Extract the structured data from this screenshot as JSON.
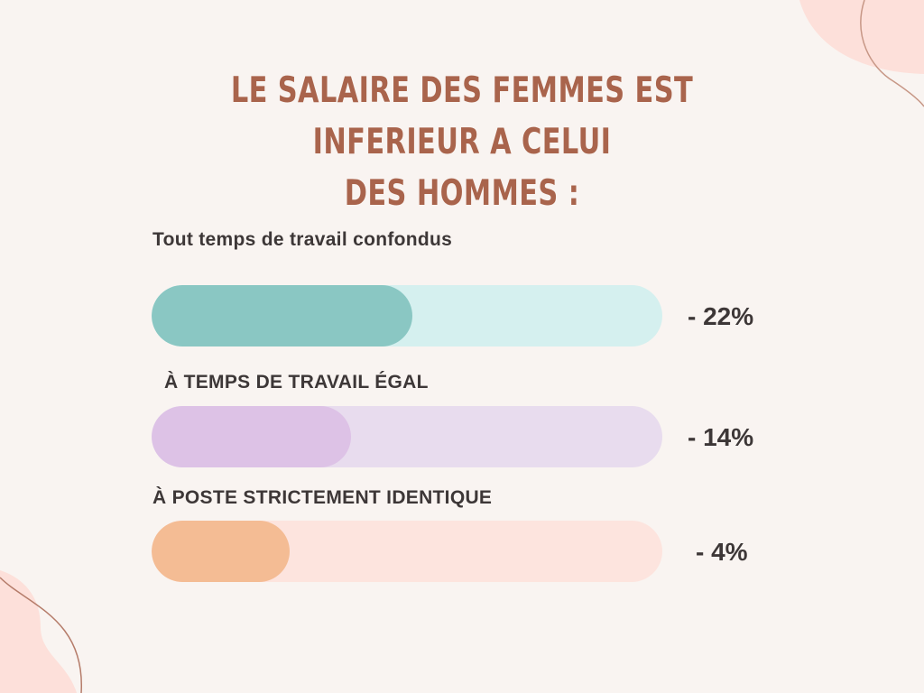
{
  "title_lines": [
    "LE SALAIRE DES FEMMES EST INFERIEUR A CELUI",
    "DES HOMMES :"
  ],
  "colors": {
    "background": "#f9f4f1",
    "title": "#a9644c",
    "text": "#3d3737",
    "decoration_fill": "#fde0da",
    "decoration_line": "#b57c6a"
  },
  "chart_data": {
    "type": "bar",
    "orientation": "horizontal",
    "grid": false,
    "categories": [
      "Tout temps de travail confondus",
      "À TEMPS DE TRAVAIL ÉGAL",
      "À POSTE STRICTEMENT IDENTIQUE"
    ],
    "values": [
      22,
      14,
      4
    ],
    "value_labels": [
      "- 22%",
      "- 14%",
      "- 4%"
    ],
    "fill_fractions": [
      0.51,
      0.39,
      0.27
    ],
    "colors": [
      {
        "fill": "#8ac7c3",
        "track": "#d5f0ef"
      },
      {
        "fill": "#ddc2e6",
        "track": "#e8dcee"
      },
      {
        "fill": "#f4bc94",
        "track": "#fde4de"
      }
    ]
  }
}
